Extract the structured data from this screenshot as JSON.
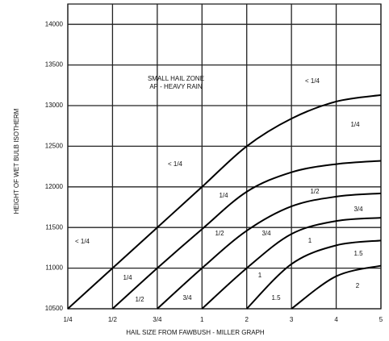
{
  "chart_data": {
    "type": "line",
    "ylabel": "HEIGHT OF WET BULB ISOTHERM",
    "xlabel": "HAIL SIZE FROM FAWBUSH - MILLER GRAPH",
    "ylim": [
      10500,
      14250
    ],
    "yticks": [
      10500,
      11000,
      11500,
      12000,
      12500,
      13000,
      13500,
      14000
    ],
    "xlim": [
      0,
      7
    ],
    "xticks": [
      {
        "value": 0,
        "label": "1/4"
      },
      {
        "value": 1,
        "label": "1/2"
      },
      {
        "value": 2,
        "label": "3/4"
      },
      {
        "value": 3,
        "label": "1"
      },
      {
        "value": 4,
        "label": "2"
      },
      {
        "value": 5,
        "label": "3"
      },
      {
        "value": 6,
        "label": "4"
      },
      {
        "value": 7,
        "label": "5"
      }
    ],
    "grid": true,
    "color": "#000000",
    "series": [
      {
        "x": [
          0,
          1,
          2,
          3,
          4,
          5,
          6,
          7
        ],
        "values": [
          10500,
          11000,
          11500,
          12000,
          12500,
          12840,
          13050,
          13130
        ]
      },
      {
        "x": [
          1,
          2,
          3,
          4,
          5,
          6,
          7
        ],
        "values": [
          10500,
          11000,
          11480,
          11940,
          12180,
          12280,
          12320
        ]
      },
      {
        "x": [
          2,
          3,
          4,
          5,
          6,
          7
        ],
        "values": [
          10500,
          11000,
          11460,
          11760,
          11880,
          11920
        ]
      },
      {
        "x": [
          3,
          4,
          5,
          6,
          7
        ],
        "values": [
          10500,
          11000,
          11420,
          11580,
          11620
        ]
      },
      {
        "x": [
          4,
          5,
          6,
          7
        ],
        "values": [
          10500,
          11050,
          11280,
          11340
        ]
      },
      {
        "x": [
          5,
          6,
          7
        ],
        "values": [
          10500,
          10900,
          11030
        ]
      }
    ],
    "annotations": [
      "SMALL HAIL ZONE",
      "AP - HEAVY RAIN",
      "< 1/4",
      "< 1/4",
      "< 1/4",
      "1/4",
      "1/4",
      "1/2",
      "3/4",
      "1/2",
      "3/4",
      "1",
      "1.5",
      "1/4",
      "1/2",
      "1",
      "3/4",
      "1.5",
      "2"
    ]
  }
}
